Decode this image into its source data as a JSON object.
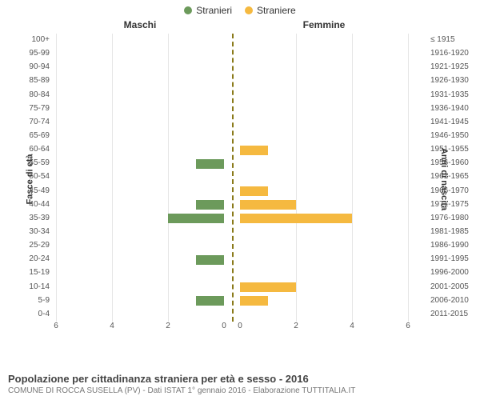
{
  "legend": {
    "male_label": "Stranieri",
    "female_label": "Straniere",
    "male_color": "#6c9a5b",
    "female_color": "#f5b940"
  },
  "headers": {
    "male": "Maschi",
    "female": "Femmine"
  },
  "y_titles": {
    "left": "Fasce di età",
    "right": "Anni di nascita"
  },
  "chart": {
    "type": "population-pyramid",
    "xmax": 6,
    "x_ticks": [
      6,
      4,
      2,
      0,
      0,
      2,
      4,
      6
    ],
    "grid_color": "#e6e6e6",
    "center_line_color": "#8a7a1a",
    "background_color": "#ffffff",
    "bar_height_ratio": 0.7,
    "categories": [
      {
        "age": "100+",
        "birth": "≤ 1915",
        "male": 0,
        "female": 0
      },
      {
        "age": "95-99",
        "birth": "1916-1920",
        "male": 0,
        "female": 0
      },
      {
        "age": "90-94",
        "birth": "1921-1925",
        "male": 0,
        "female": 0
      },
      {
        "age": "85-89",
        "birth": "1926-1930",
        "male": 0,
        "female": 0
      },
      {
        "age": "80-84",
        "birth": "1931-1935",
        "male": 0,
        "female": 0
      },
      {
        "age": "75-79",
        "birth": "1936-1940",
        "male": 0,
        "female": 0
      },
      {
        "age": "70-74",
        "birth": "1941-1945",
        "male": 0,
        "female": 0
      },
      {
        "age": "65-69",
        "birth": "1946-1950",
        "male": 0,
        "female": 0
      },
      {
        "age": "60-64",
        "birth": "1951-1955",
        "male": 0,
        "female": 1
      },
      {
        "age": "55-59",
        "birth": "1956-1960",
        "male": 1,
        "female": 0
      },
      {
        "age": "50-54",
        "birth": "1961-1965",
        "male": 0,
        "female": 0
      },
      {
        "age": "45-49",
        "birth": "1966-1970",
        "male": 0,
        "female": 1
      },
      {
        "age": "40-44",
        "birth": "1971-1975",
        "male": 1,
        "female": 2
      },
      {
        "age": "35-39",
        "birth": "1976-1980",
        "male": 2,
        "female": 4
      },
      {
        "age": "30-34",
        "birth": "1981-1985",
        "male": 0,
        "female": 0
      },
      {
        "age": "25-29",
        "birth": "1986-1990",
        "male": 0,
        "female": 0
      },
      {
        "age": "20-24",
        "birth": "1991-1995",
        "male": 1,
        "female": 0
      },
      {
        "age": "15-19",
        "birth": "1996-2000",
        "male": 0,
        "female": 0
      },
      {
        "age": "10-14",
        "birth": "2001-2005",
        "male": 0,
        "female": 2
      },
      {
        "age": "5-9",
        "birth": "2006-2010",
        "male": 1,
        "female": 1
      },
      {
        "age": "0-4",
        "birth": "2011-2015",
        "male": 0,
        "female": 0
      }
    ]
  },
  "footer": {
    "title": "Popolazione per cittadinanza straniera per età e sesso - 2016",
    "subtitle": "COMUNE DI ROCCA SUSELLA (PV) - Dati ISTAT 1° gennaio 2016 - Elaborazione TUTTITALIA.IT"
  }
}
